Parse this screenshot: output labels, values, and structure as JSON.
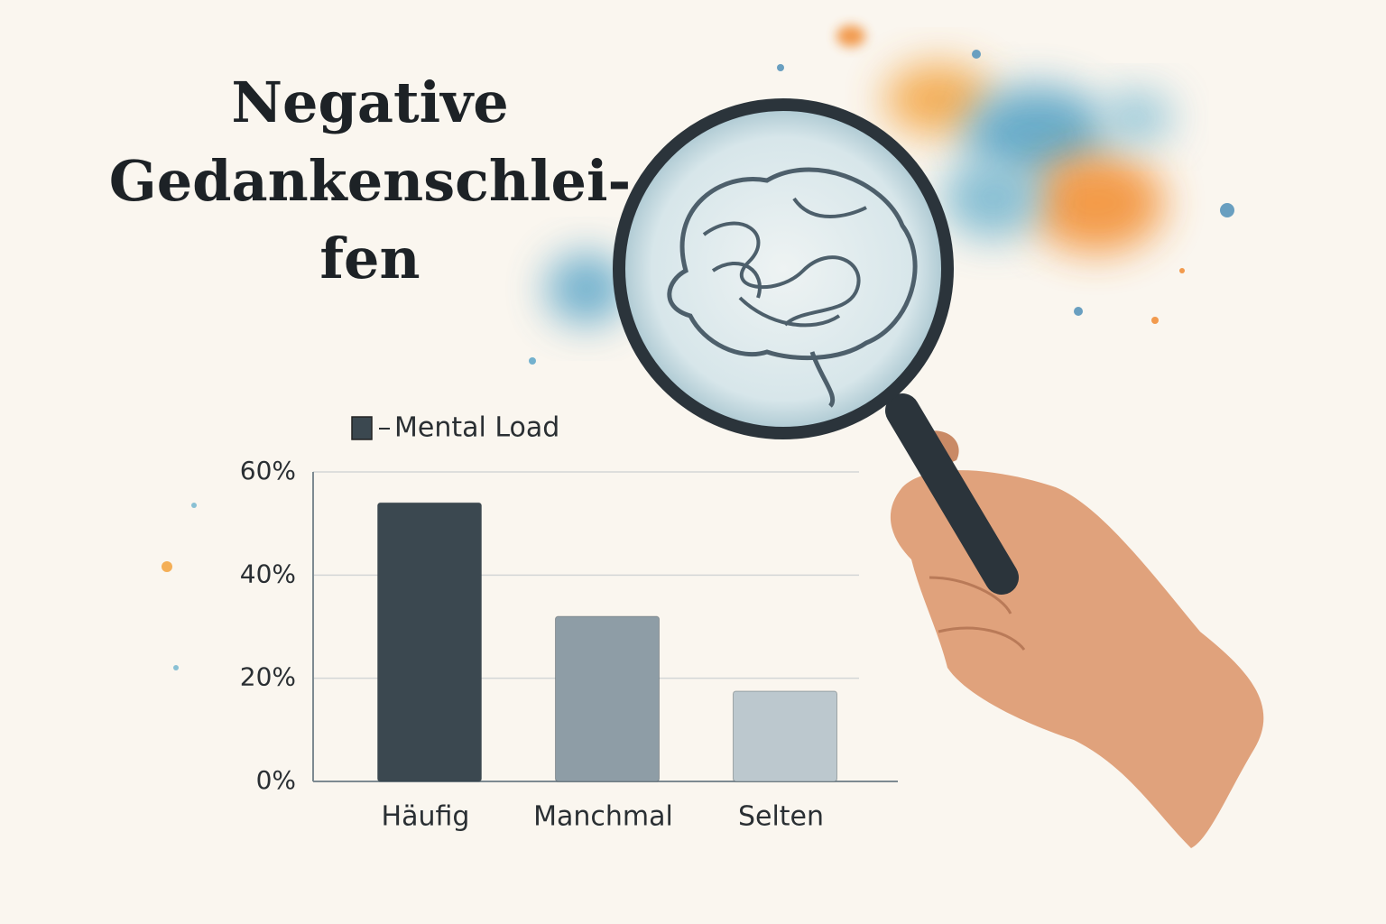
{
  "chart_data": {
    "type": "bar",
    "title_lines": [
      "Negative",
      "Gedankenschlei-",
      "fen"
    ],
    "categories": [
      "Häufig",
      "Manchmal",
      "Selten"
    ],
    "series": [
      {
        "name": "Mental Load",
        "color": "#3b4850",
        "bar_colors": [
          "#3b4850",
          "#8e9da6",
          "#bcc8ce"
        ],
        "values": [
          54,
          32,
          17.5
        ]
      }
    ],
    "ylim": [
      0,
      60
    ],
    "yticks": [
      {
        "value": 0,
        "label": "0%"
      },
      {
        "value": 20,
        "label": "20%"
      },
      {
        "value": 40,
        "label": "40%"
      },
      {
        "value": 60,
        "label": "60%"
      }
    ],
    "grid": true
  }
}
